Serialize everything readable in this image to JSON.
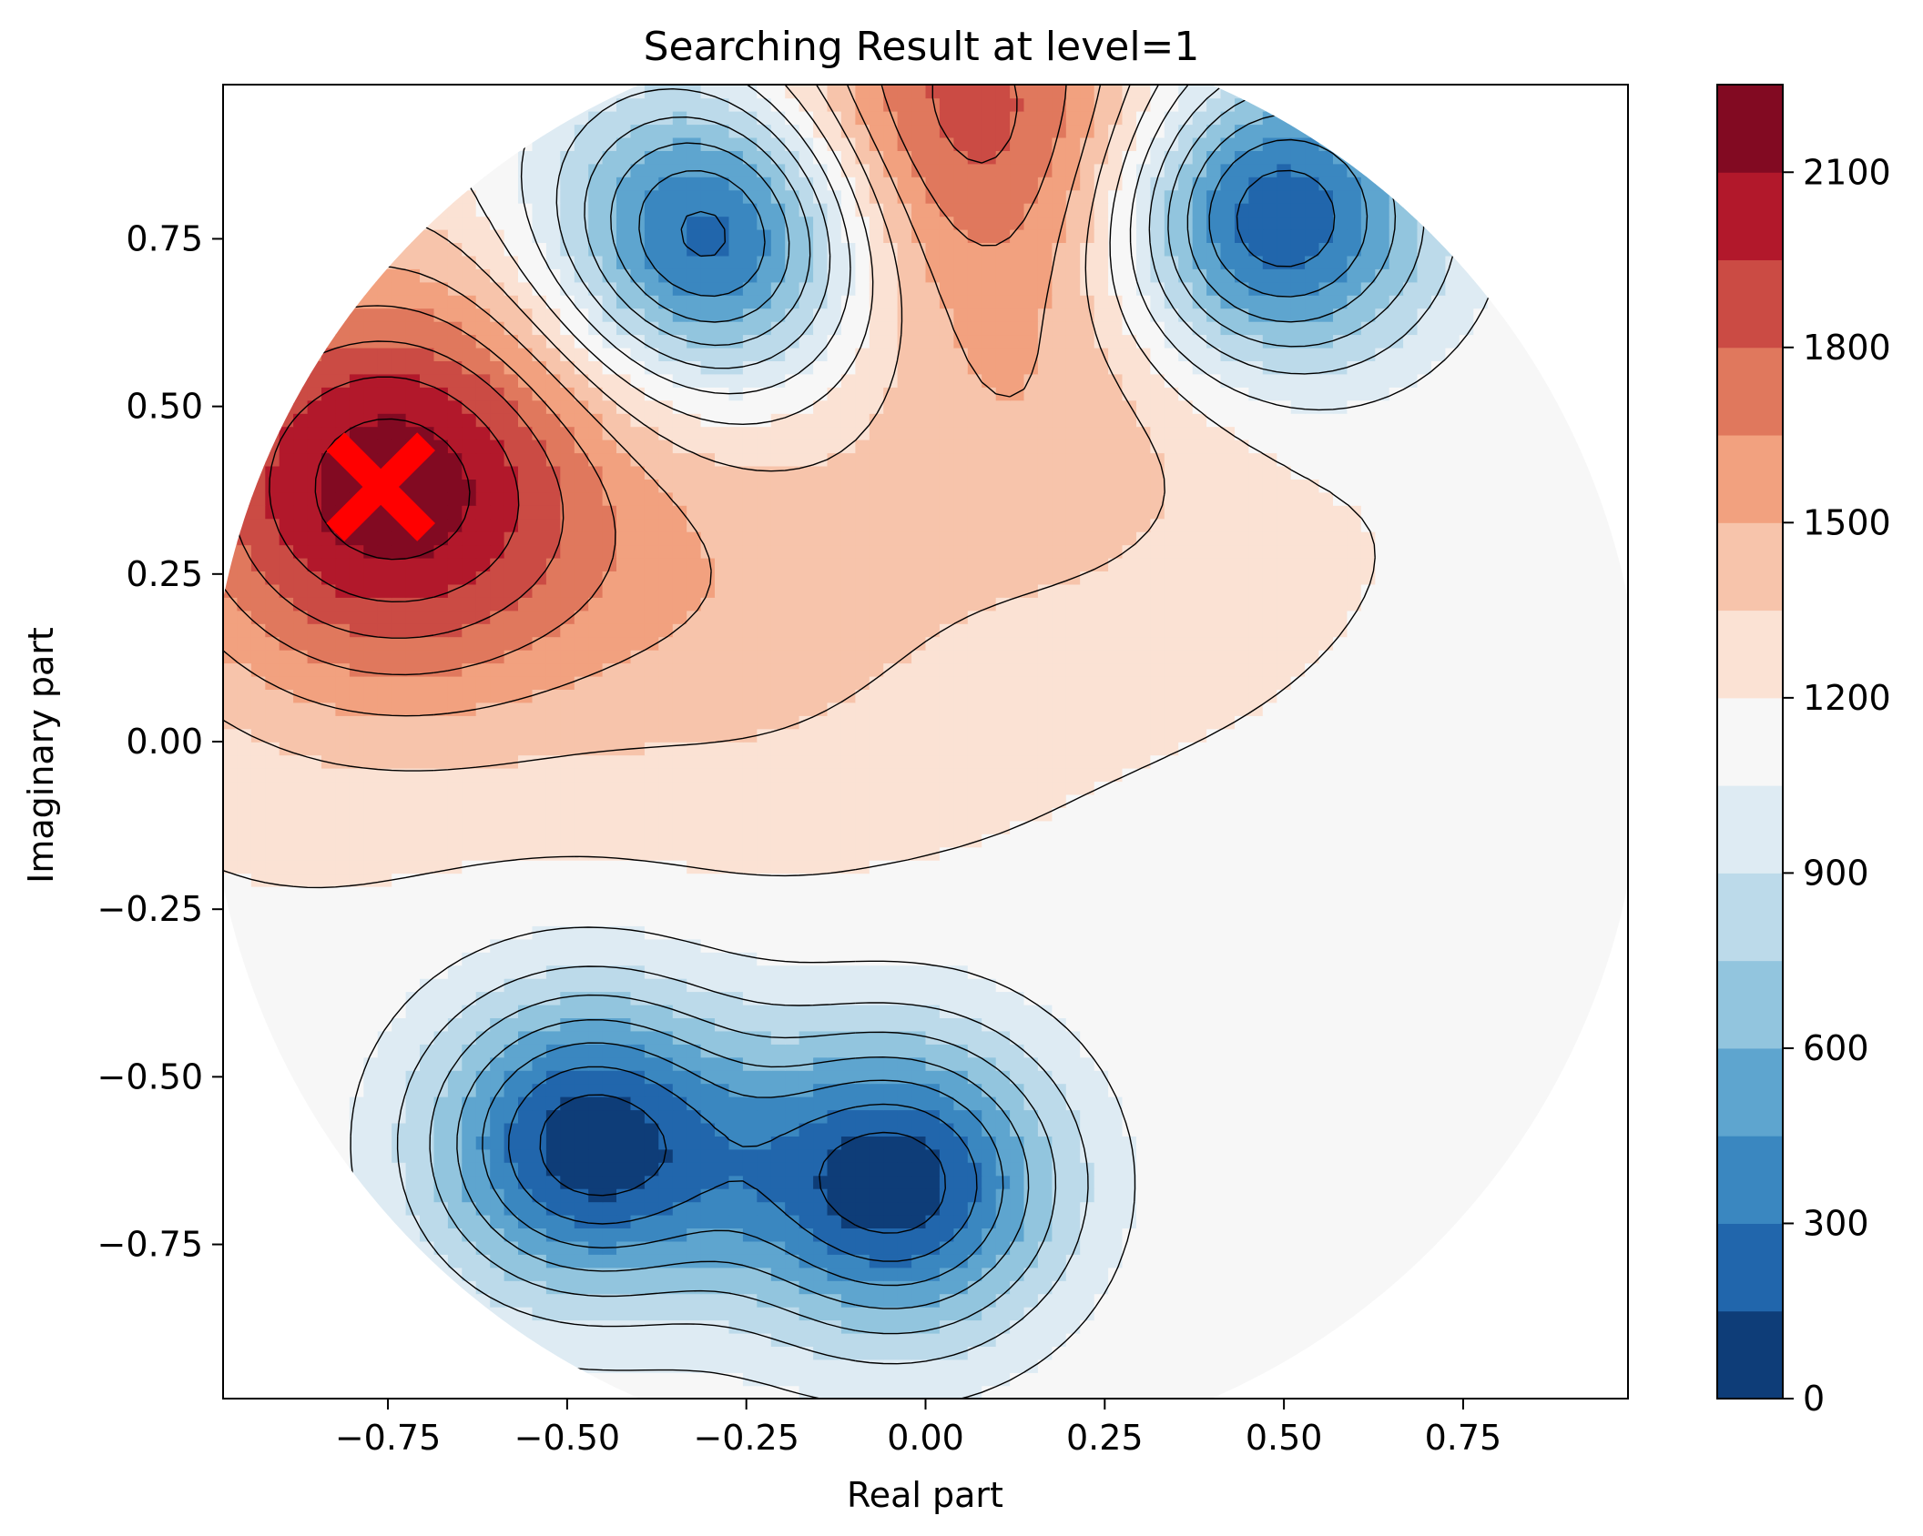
{
  "chart_data": {
    "type": "contour",
    "title": "Searching Result at level=1",
    "xlabel": "Real part",
    "ylabel": "Imaginary part",
    "xlim": [
      -0.98,
      0.98
    ],
    "ylim": [
      -0.98,
      0.98
    ],
    "xticks": [
      -0.75,
      -0.5,
      -0.25,
      0.0,
      0.25,
      0.5,
      0.75
    ],
    "xtick_labels": [
      "−0.75",
      "−0.50",
      "−0.25",
      "0.00",
      "0.25",
      "0.50",
      "0.75"
    ],
    "yticks": [
      -0.75,
      -0.5,
      -0.25,
      0.0,
      0.25,
      0.5,
      0.75
    ],
    "ytick_labels": [
      "−0.75",
      "−0.50",
      "−0.25",
      "0.00",
      "0.25",
      "0.50",
      "0.75"
    ],
    "domain": "unit disk",
    "colormap": "RdBu_r",
    "levels": [
      0,
      150,
      300,
      450,
      600,
      750,
      900,
      1050,
      1200,
      1350,
      1500,
      1650,
      1800,
      1950,
      2100,
      2250
    ],
    "level_colors": [
      "#0e3d78",
      "#2166ac",
      "#3a87c0",
      "#5ea5cf",
      "#92c5de",
      "#bcdaea",
      "#deebf3",
      "#f7f7f7",
      "#fbe2d4",
      "#f7c4ab",
      "#f2a17f",
      "#e0785d",
      "#cb4b44",
      "#b2182b",
      "#820a22"
    ],
    "colorbar_ticks": [
      0,
      300,
      600,
      900,
      1200,
      1500,
      1800,
      2100
    ],
    "colorbar_tick_labels": [
      "0",
      "300",
      "600",
      "900",
      "1200",
      "1500",
      "1800",
      "2100"
    ],
    "features": [
      {
        "kind": "maximum",
        "x": -0.75,
        "y": 0.38,
        "value": 2200
      },
      {
        "kind": "maximum",
        "x": 0.05,
        "y": 0.93,
        "value": 1900
      },
      {
        "kind": "maximum",
        "x": 0.2,
        "y": 0.47,
        "value": 1420
      },
      {
        "kind": "maximum",
        "x": -0.25,
        "y": 0.2,
        "value": 1400
      },
      {
        "kind": "minimum",
        "x": -0.29,
        "y": 0.76,
        "value": 80
      },
      {
        "kind": "minimum",
        "x": 0.48,
        "y": 0.78,
        "value": 80
      },
      {
        "kind": "minimum",
        "x": -0.47,
        "y": -0.6,
        "value": 60
      },
      {
        "kind": "minimum",
        "x": -0.04,
        "y": -0.66,
        "value": 60
      }
    ],
    "marker": {
      "label": "X",
      "x": -0.76,
      "y": 0.38,
      "color": "#ff0000"
    }
  }
}
